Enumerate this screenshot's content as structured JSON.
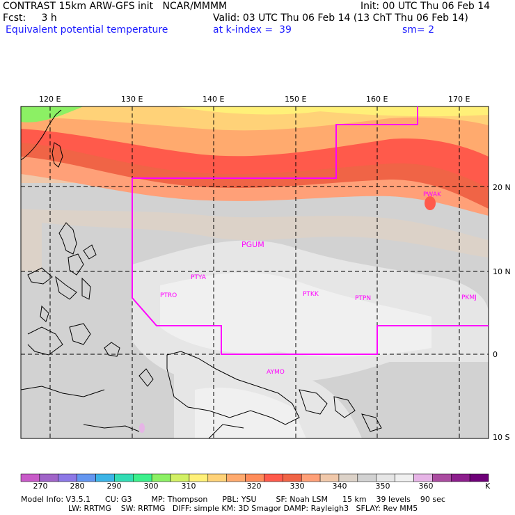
{
  "header": {
    "line1_left": "CONTRAST 15km ARW-GFS init   NCAR/MMMM",
    "line1_right": "Init: 00 UTC Thu 06 Feb 14",
    "line2_left": "Fcst:     3 h",
    "line2_right": "Valid: 03 UTC Thu 06 Feb 14 (13 ChT Thu 06 Feb 14)",
    "line3_left": "Equivalent potential temperature",
    "line3_mid": "at k-index =  39",
    "line3_right": "sm= 2"
  },
  "axes": {
    "lon_labels": [
      "120 E",
      "130 E",
      "140 E",
      "150 E",
      "160 E",
      "170 E"
    ],
    "lat_labels": [
      "20 N",
      "10 N",
      "0",
      "10 S"
    ]
  },
  "stations": [
    "PWAK",
    "PGUM",
    "PTYA",
    "PTRO",
    "PTKK",
    "PTPN",
    "PKMJ",
    "AYMO"
  ],
  "colorbar": {
    "colors": [
      "#c85ac8",
      "#a064c8",
      "#8c78e6",
      "#6496f0",
      "#3cb4e6",
      "#32dcb4",
      "#3cf08c",
      "#8cf064",
      "#d2f064",
      "#fff078",
      "#ffd278",
      "#ffaa6e",
      "#ff8c5a",
      "#ff5a4b",
      "#f06446",
      "#ffa078",
      "#f0c8aa",
      "#dcd2c8",
      "#d2d2d2",
      "#e6e6e6",
      "#f0f0f0",
      "#e6b4e6",
      "#aa4ba0",
      "#8c1e8c",
      "#6e0078"
    ],
    "labels": [
      "270",
      "280",
      "290",
      "300",
      "310",
      "320",
      "330",
      "340",
      "350",
      "360"
    ],
    "unit": "K"
  },
  "footer": {
    "line1": "Model Info: V3.5.1      CU: G3        MP: Thompson      PBL: YSU        SF: Noah LSM      15 km    39 levels    90 sec",
    "line2": "LW: RRTMG    SW: RRTMG   DIFF: simple KM: 3D Smagor DAMP: Rayleigh3   SFLAY: Rev MM5"
  }
}
